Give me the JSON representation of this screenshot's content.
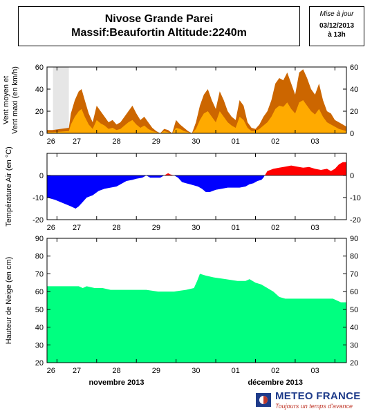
{
  "header": {
    "station": "Nivose Grande Parei",
    "massif": "Massif:Beaufortin Altitude:2240m",
    "update_label": "Mise à jour",
    "update_date": "03/12/2013",
    "update_time": "à 13h"
  },
  "footer": {
    "month1": "novembre 2013",
    "month2": "décembre 2013",
    "brand": "METEO FRANCE",
    "slogan": "Toujours un temps d'avance"
  },
  "colors": {
    "wind_max": "#cc6600",
    "wind_mean": "#ffaa00",
    "temp_negative": "#0000ff",
    "temp_positive": "#ff0000",
    "snow": "#00ff80",
    "missing": "#e6e6e6"
  },
  "chart_data": [
    {
      "type": "area",
      "name": "wind",
      "ylabel": "Vent moyen et\nVent maxi (en km/h)",
      "ylim": [
        0,
        60
      ],
      "yticks": [
        0,
        20,
        40,
        60
      ],
      "x_tick_labels": [
        "26",
        "27",
        "28",
        "29",
        "30",
        "01",
        "02",
        "03"
      ],
      "x_range_days": [
        0,
        7.54
      ],
      "missing_interval_days": [
        0.15,
        0.55
      ],
      "series": [
        {
          "name": "Vent maxi",
          "x": [
            0,
            0.14,
            0.55,
            0.6,
            0.7,
            0.8,
            0.87,
            0.95,
            1.05,
            1.15,
            1.25,
            1.35,
            1.45,
            1.55,
            1.65,
            1.75,
            1.85,
            1.95,
            2.05,
            2.15,
            2.25,
            2.35,
            2.45,
            2.55,
            2.65,
            2.75,
            2.85,
            2.95,
            3.05,
            3.15,
            3.25,
            3.35,
            3.45,
            3.55,
            3.65,
            3.75,
            3.85,
            3.95,
            4.05,
            4.15,
            4.25,
            4.35,
            4.45,
            4.55,
            4.65,
            4.75,
            4.85,
            4.95,
            5.05,
            5.15,
            5.25,
            5.35,
            5.45,
            5.55,
            5.65,
            5.75,
            5.85,
            5.95,
            6.05,
            6.15,
            6.25,
            6.35,
            6.45,
            6.55,
            6.65,
            6.75,
            6.85,
            6.95,
            7.05,
            7.15,
            7.25,
            7.35,
            7.45,
            7.54
          ],
          "values": [
            3,
            3,
            5,
            18,
            30,
            38,
            40,
            30,
            18,
            10,
            25,
            20,
            15,
            10,
            12,
            8,
            10,
            15,
            20,
            25,
            18,
            12,
            15,
            10,
            5,
            2,
            0,
            4,
            3,
            0,
            12,
            8,
            5,
            2,
            0,
            10,
            25,
            35,
            40,
            30,
            22,
            38,
            30,
            20,
            15,
            12,
            30,
            25,
            10,
            5,
            4,
            8,
            15,
            20,
            30,
            45,
            50,
            48,
            55,
            45,
            35,
            55,
            58,
            50,
            40,
            35,
            45,
            30,
            20,
            18,
            12,
            10,
            8,
            6
          ]
        },
        {
          "name": "Vent moyen",
          "x": [
            0,
            0.14,
            0.55,
            0.6,
            0.7,
            0.8,
            0.87,
            0.95,
            1.05,
            1.15,
            1.25,
            1.35,
            1.45,
            1.55,
            1.65,
            1.75,
            1.85,
            1.95,
            2.05,
            2.15,
            2.25,
            2.35,
            2.45,
            2.55,
            2.65,
            2.75,
            2.85,
            2.95,
            3.05,
            3.15,
            3.25,
            3.35,
            3.45,
            3.55,
            3.65,
            3.75,
            3.85,
            3.95,
            4.05,
            4.15,
            4.25,
            4.35,
            4.45,
            4.55,
            4.65,
            4.75,
            4.85,
            4.95,
            5.05,
            5.15,
            5.25,
            5.35,
            5.45,
            5.55,
            5.65,
            5.75,
            5.85,
            5.95,
            6.05,
            6.15,
            6.25,
            6.35,
            6.45,
            6.55,
            6.65,
            6.75,
            6.85,
            6.95,
            7.05,
            7.15,
            7.25,
            7.35,
            7.45,
            7.54
          ],
          "values": [
            1,
            1,
            2,
            8,
            15,
            20,
            22,
            15,
            8,
            4,
            12,
            9,
            7,
            4,
            5,
            3,
            4,
            7,
            10,
            12,
            8,
            5,
            7,
            4,
            2,
            1,
            0,
            2,
            1,
            0,
            5,
            4,
            2,
            1,
            0,
            4,
            12,
            18,
            20,
            15,
            10,
            20,
            15,
            10,
            7,
            5,
            15,
            12,
            5,
            2,
            2,
            4,
            7,
            10,
            15,
            22,
            25,
            24,
            28,
            22,
            18,
            28,
            30,
            25,
            20,
            17,
            22,
            15,
            10,
            8,
            6,
            4,
            3,
            2
          ]
        }
      ]
    },
    {
      "type": "area",
      "name": "temperature",
      "ylabel": "Température Air (en °C)",
      "ylim": [
        -20,
        10
      ],
      "yticks": [
        -20,
        -10,
        0
      ],
      "x_tick_labels": [
        "26",
        "27",
        "28",
        "29",
        "30",
        "01",
        "02",
        "03"
      ],
      "series": [
        {
          "name": "Température Air",
          "x": [
            0,
            0.2,
            0.4,
            0.6,
            0.72,
            0.8,
            0.9,
            1.0,
            1.15,
            1.3,
            1.45,
            1.6,
            1.75,
            1.9,
            2.0,
            2.15,
            2.25,
            2.4,
            2.5,
            2.6,
            2.75,
            2.85,
            2.95,
            3.05,
            3.1,
            3.2,
            3.3,
            3.4,
            3.5,
            3.6,
            3.7,
            3.8,
            3.9,
            4.0,
            4.1,
            4.25,
            4.4,
            4.55,
            4.7,
            4.85,
            5.0,
            5.1,
            5.2,
            5.3,
            5.4,
            5.45,
            5.55,
            5.7,
            5.85,
            6.0,
            6.15,
            6.3,
            6.45,
            6.6,
            6.75,
            6.9,
            7.05,
            7.15,
            7.25,
            7.35,
            7.45,
            7.54
          ],
          "values": [
            -10,
            -11,
            -12.5,
            -14,
            -15,
            -14,
            -12,
            -10,
            -9,
            -7,
            -6,
            -5.5,
            -5,
            -3.5,
            -2.5,
            -2,
            -1.5,
            -1,
            0,
            -1,
            -1,
            -1,
            0,
            1,
            0.5,
            0,
            -1,
            -3,
            -3.5,
            -4,
            -4.5,
            -5,
            -6,
            -7.5,
            -7.5,
            -6.5,
            -6,
            -5.5,
            -5.5,
            -5.5,
            -5,
            -4,
            -3.5,
            -2.5,
            -2,
            -1,
            2,
            3,
            3.5,
            4,
            4.5,
            4,
            3.5,
            3.8,
            3,
            2.5,
            3,
            2,
            3,
            5,
            6,
            6
          ]
        }
      ]
    },
    {
      "type": "area",
      "name": "snow",
      "ylabel": "Hauteur de Neige (en cm)",
      "ylim": [
        20,
        90
      ],
      "yticks": [
        20,
        30,
        40,
        50,
        60,
        70,
        80,
        90
      ],
      "x_tick_labels": [
        "26",
        "27",
        "28",
        "29",
        "30",
        "01",
        "02",
        "03"
      ],
      "series": [
        {
          "name": "Hauteur de Neige",
          "x": [
            0,
            0.5,
            0.8,
            0.9,
            1.0,
            1.2,
            1.4,
            1.6,
            1.8,
            2.0,
            2.2,
            2.5,
            2.8,
            3.0,
            3.2,
            3.5,
            3.7,
            3.78,
            3.85,
            4.0,
            4.2,
            4.5,
            4.8,
            5.0,
            5.1,
            5.25,
            5.4,
            5.55,
            5.7,
            5.85,
            6.0,
            6.3,
            6.6,
            6.9,
            7.2,
            7.3,
            7.4,
            7.54
          ],
          "values": [
            63,
            63,
            63,
            62,
            63,
            62,
            62,
            61,
            61,
            61,
            61,
            61,
            60,
            60,
            60,
            61,
            62,
            66,
            70,
            69,
            68,
            67,
            66,
            66,
            67,
            65,
            64,
            62,
            60,
            57,
            56,
            56,
            56,
            56,
            56,
            55,
            54,
            54
          ]
        }
      ]
    }
  ]
}
